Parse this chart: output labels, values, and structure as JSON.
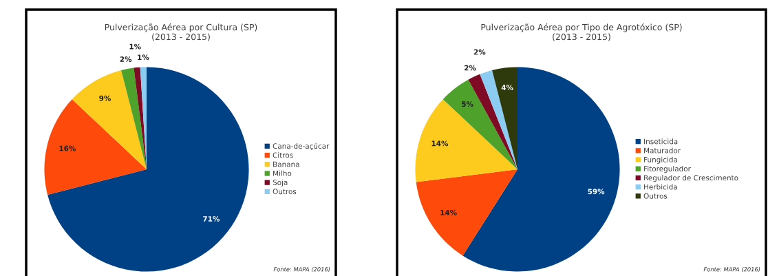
{
  "chart_data": [
    {
      "type": "pie",
      "title": "Pulverização Aérea por Cultura (SP)\n(2013 - 2015)",
      "categories": [
        "Cana-de-açúcar",
        "Citros",
        "Banana",
        "Milho",
        "Soja",
        "Outros"
      ],
      "values": [
        71,
        16,
        9,
        2,
        1,
        1
      ],
      "colors": [
        "#004185",
        "#fe4a0b",
        "#fdcb1d",
        "#4ea12b",
        "#7e0a25",
        "#8ccbf2"
      ],
      "value_labels": [
        "71%",
        "16%",
        "9%",
        "2%",
        "1%",
        "1%"
      ],
      "legend": "right",
      "annotations": [
        "Fonte: MAPA (2016)"
      ]
    },
    {
      "type": "pie",
      "title": "Pulverização Aérea por Tipo de Agrotóxico (SP)\n(2013 - 2015)",
      "categories": [
        "Inseticida",
        "Maturador",
        "Fungicida",
        "Fitoregulador",
        "Regulador de Crescimento",
        "Herbicida",
        "Outros"
      ],
      "values": [
        59,
        14,
        14,
        5,
        2,
        2,
        4
      ],
      "colors": [
        "#004185",
        "#fe4a0b",
        "#fdcb1d",
        "#4ea12b",
        "#7e0a25",
        "#8ccbf2",
        "#2f3a0c"
      ],
      "value_labels": [
        "59%",
        "14%",
        "14%",
        "5%",
        "2%",
        "2%",
        "4%"
      ],
      "legend": "right",
      "annotations": [
        "Fonte: MAPA (2016)"
      ]
    }
  ]
}
